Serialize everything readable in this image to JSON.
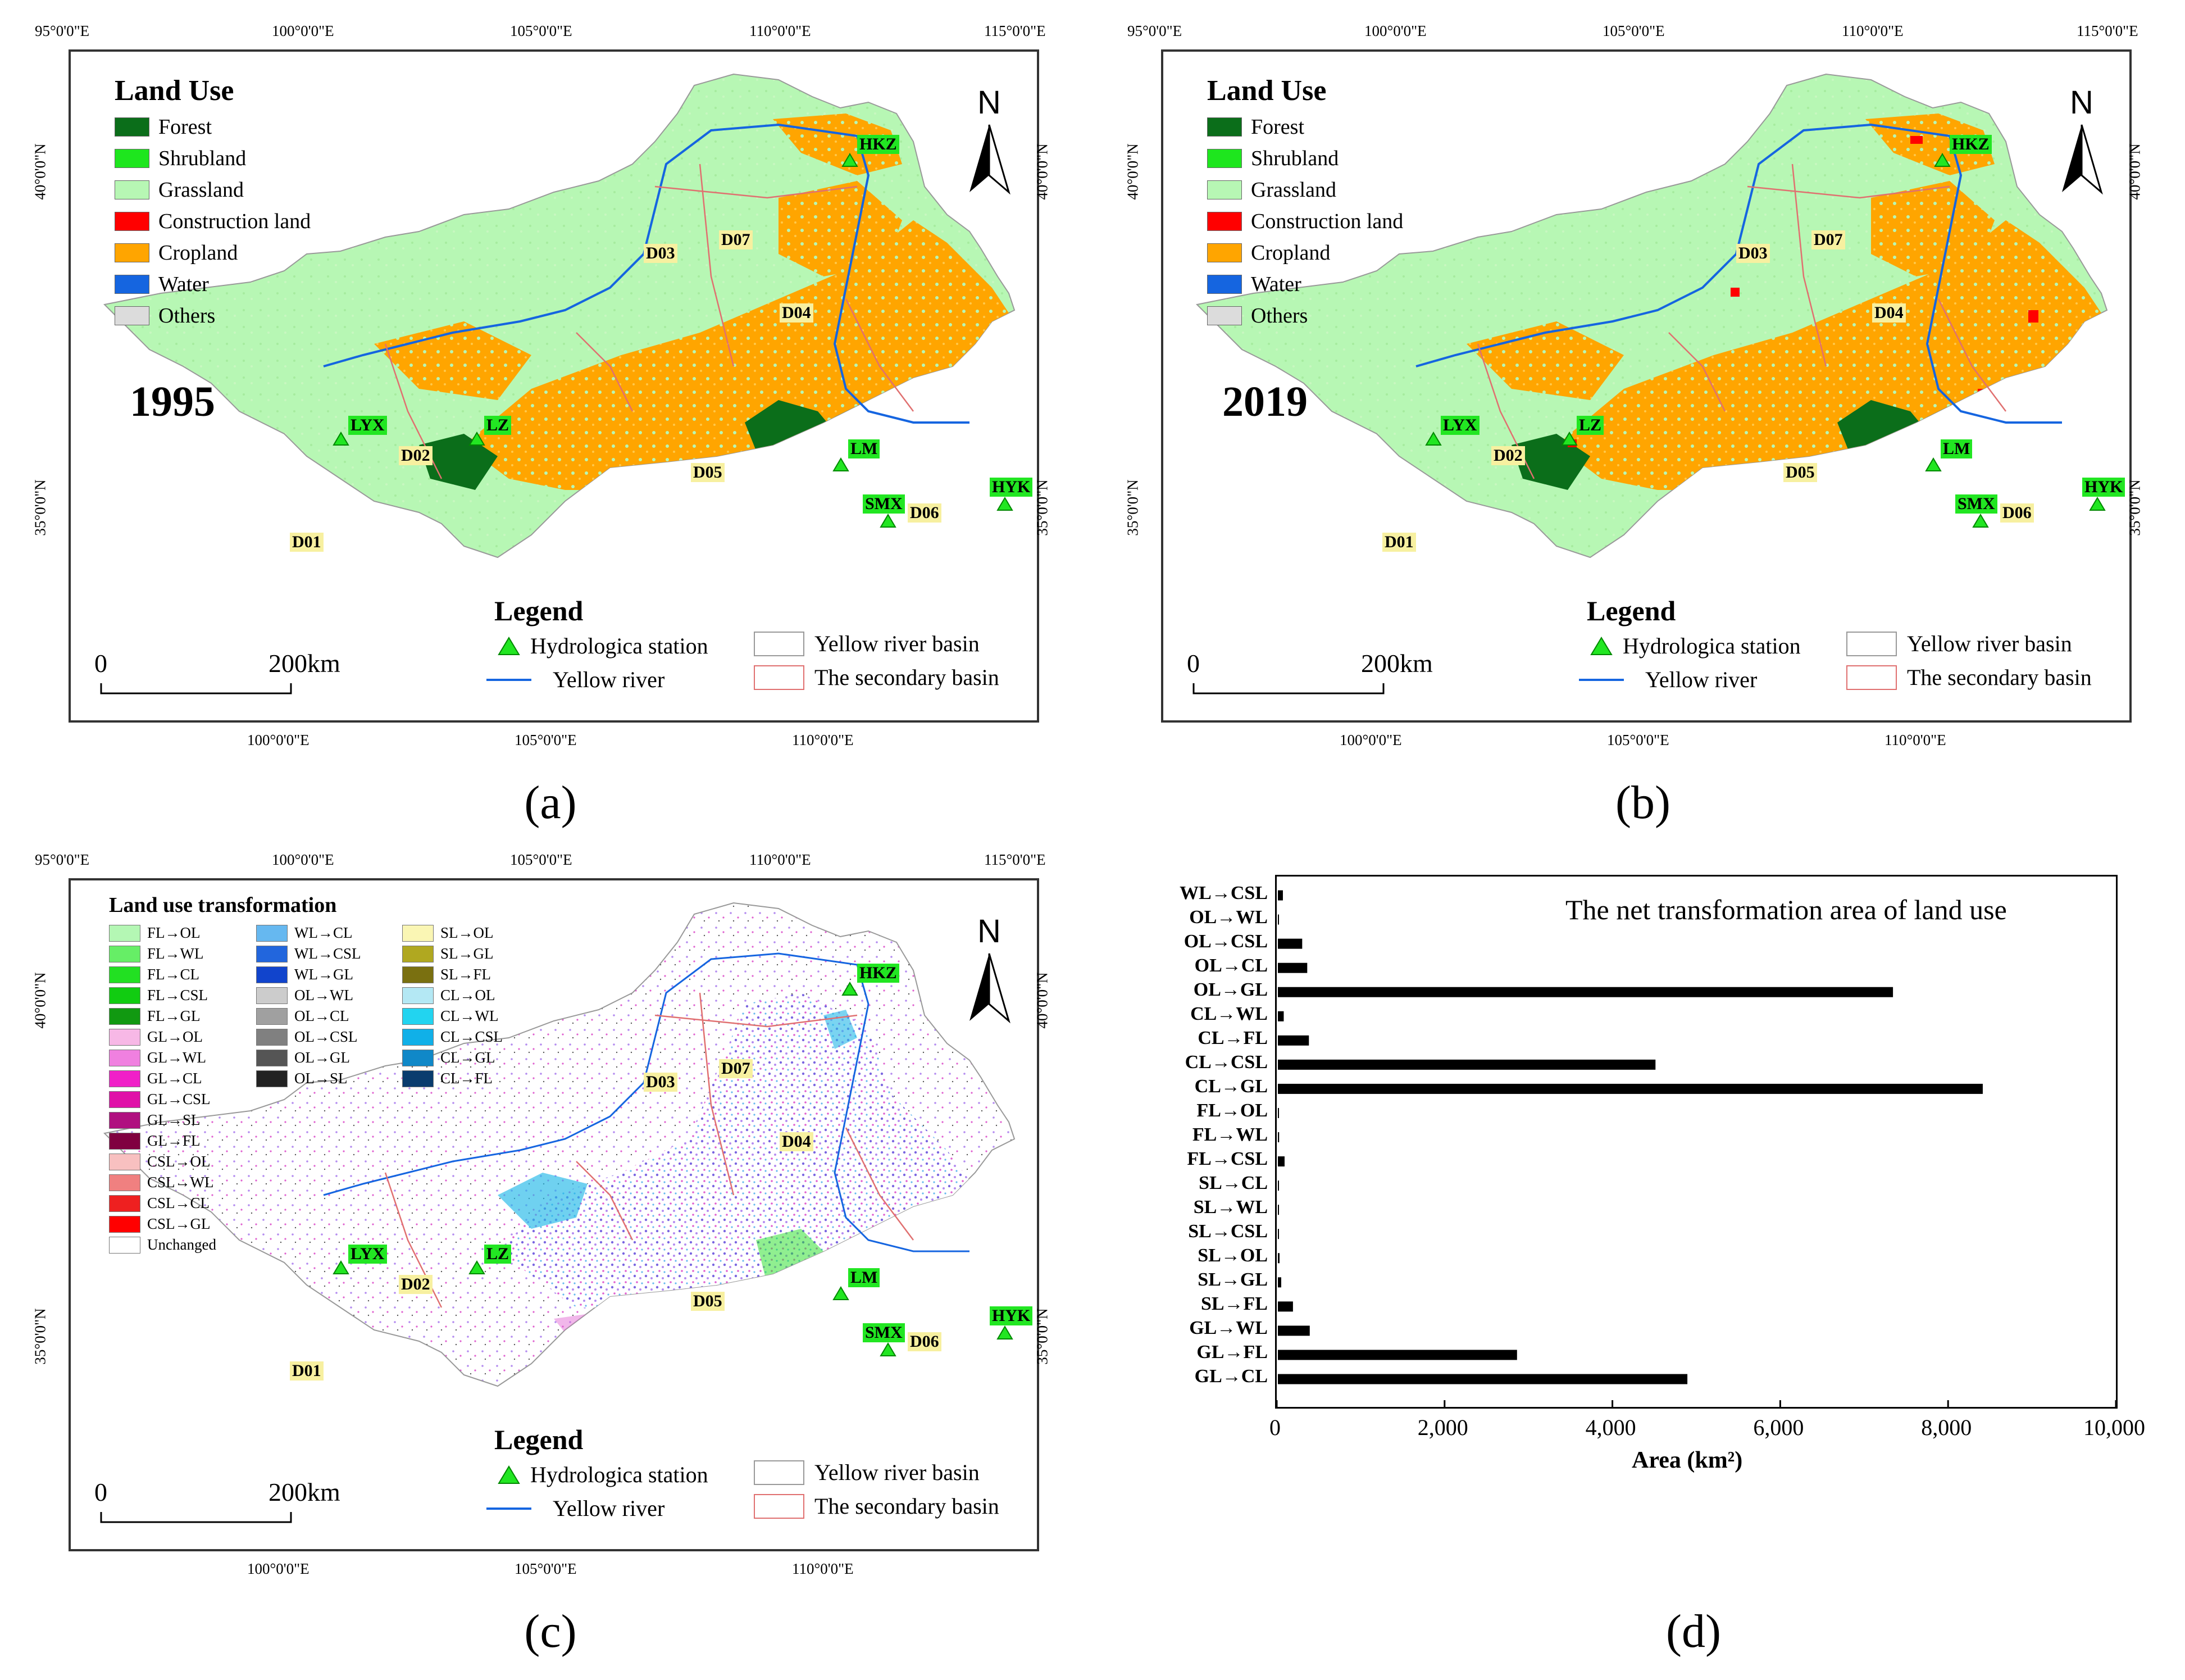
{
  "coords": {
    "top": [
      "95°0'0\"E",
      "100°0'0\"E",
      "105°0'0\"E",
      "110°0'0\"E",
      "115°0'0\"E"
    ],
    "bottom": [
      "100°0'0\"E",
      "105°0'0\"E",
      "110°0'0\"E"
    ],
    "side": [
      "40°0'0\"N",
      "35°0'0\"N"
    ]
  },
  "panel_labels": [
    "(a)",
    "(b)",
    "(c)",
    "(d)"
  ],
  "land_use": {
    "title": "Land Use",
    "items": [
      {
        "label": "Forest",
        "color": "#0b6e1a"
      },
      {
        "label": "Shrubland",
        "color": "#1ee61e"
      },
      {
        "label": "Grassland",
        "color": "#b7f7b4"
      },
      {
        "label": "Construction land",
        "color": "#ff0000"
      },
      {
        "label": "Cropland",
        "color": "#ffa500"
      },
      {
        "label": "Water",
        "color": "#1565e0"
      },
      {
        "label": "Others",
        "color": "#dcdcdc"
      }
    ]
  },
  "years": [
    "1995",
    "2019"
  ],
  "stations": [
    "HKZ",
    "LYX",
    "LZ",
    "LM",
    "SMX",
    "HYK"
  ],
  "basins": [
    "D01",
    "D02",
    "D03",
    "D04",
    "D05",
    "D06",
    "D07"
  ],
  "legend": {
    "title": "Legend",
    "station": "Hydrologica station",
    "basin": "Yellow river basin",
    "river": "Yellow river",
    "secondary": "The secondary basin"
  },
  "scale": {
    "zero": "0",
    "dist": "200",
    "unit": "km"
  },
  "transformation": {
    "title": "Land use transformation",
    "col1": [
      {
        "label": "FL→OL",
        "color": "#b4f7b4"
      },
      {
        "label": "FL→WL",
        "color": "#66ee66"
      },
      {
        "label": "FL→CL",
        "color": "#22e022"
      },
      {
        "label": "FL→CSL",
        "color": "#11cc11"
      },
      {
        "label": "FL→GL",
        "color": "#119911"
      },
      {
        "label": "GL→OL",
        "color": "#f7b8e6"
      },
      {
        "label": "GL→WL",
        "color": "#f080e0"
      },
      {
        "label": "GL→CL",
        "color": "#f020c8"
      },
      {
        "label": "GL→CSL",
        "color": "#e010a8"
      },
      {
        "label": "GL→SL",
        "color": "#b01080"
      },
      {
        "label": "GL→FL",
        "color": "#800040"
      },
      {
        "label": "CSL→OL",
        "color": "#f8c0c0"
      },
      {
        "label": "CSL→WL",
        "color": "#f08080"
      },
      {
        "label": "CSL→CL",
        "color": "#ee2020"
      },
      {
        "label": "CSL→GL",
        "color": "#ff0000"
      },
      {
        "label": "Unchanged",
        "color": "#ffffff"
      }
    ],
    "col2": [
      {
        "label": "WL→CL",
        "color": "#66b8f0"
      },
      {
        "label": "WL→CSL",
        "color": "#2266dd"
      },
      {
        "label": "WL→GL",
        "color": "#1144cc"
      },
      {
        "label": "OL→WL",
        "color": "#cccccc"
      },
      {
        "label": "OL→CL",
        "color": "#a0a0a0"
      },
      {
        "label": "OL→CSL",
        "color": "#808080"
      },
      {
        "label": "OL→GL",
        "color": "#555555"
      },
      {
        "label": "OL→SL",
        "color": "#222222"
      }
    ],
    "col3": [
      {
        "label": "SL→OL",
        "color": "#faf6b4"
      },
      {
        "label": "SL→GL",
        "color": "#b0a820"
      },
      {
        "label": "SL→FL",
        "color": "#7a7010"
      },
      {
        "label": "CL→OL",
        "color": "#b4e8f4"
      },
      {
        "label": "CL→WL",
        "color": "#22d4f0"
      },
      {
        "label": "CL→CSL",
        "color": "#10b0e8"
      },
      {
        "label": "CL→GL",
        "color": "#1088c8"
      },
      {
        "label": "CL→FL",
        "color": "#0a3c6e"
      }
    ]
  },
  "chart_data": {
    "type": "bar",
    "orientation": "horizontal",
    "title": "The net transformation area of land use",
    "xlabel": "Area (km²)",
    "xlim": [
      0,
      10000
    ],
    "xticks": [
      "0",
      "2,000",
      "4,000",
      "6,000",
      "8,000",
      "10,000"
    ],
    "categories": [
      "WL→CSL",
      "OL→WL",
      "OL→CSL",
      "OL→CL",
      "OL→GL",
      "CL→WL",
      "CL→FL",
      "CL→CSL",
      "CL→GL",
      "FL→OL",
      "FL→WL",
      "FL→CSL",
      "SL→CL",
      "SL→WL",
      "SL→CSL",
      "SL→OL",
      "SL→GL",
      "SL→FL",
      "GL→WL",
      "GL→FL",
      "GL→CL"
    ],
    "values": [
      60,
      10,
      290,
      350,
      7330,
      70,
      370,
      4500,
      8400,
      5,
      15,
      80,
      5,
      5,
      10,
      20,
      40,
      180,
      380,
      2850,
      4880
    ]
  }
}
